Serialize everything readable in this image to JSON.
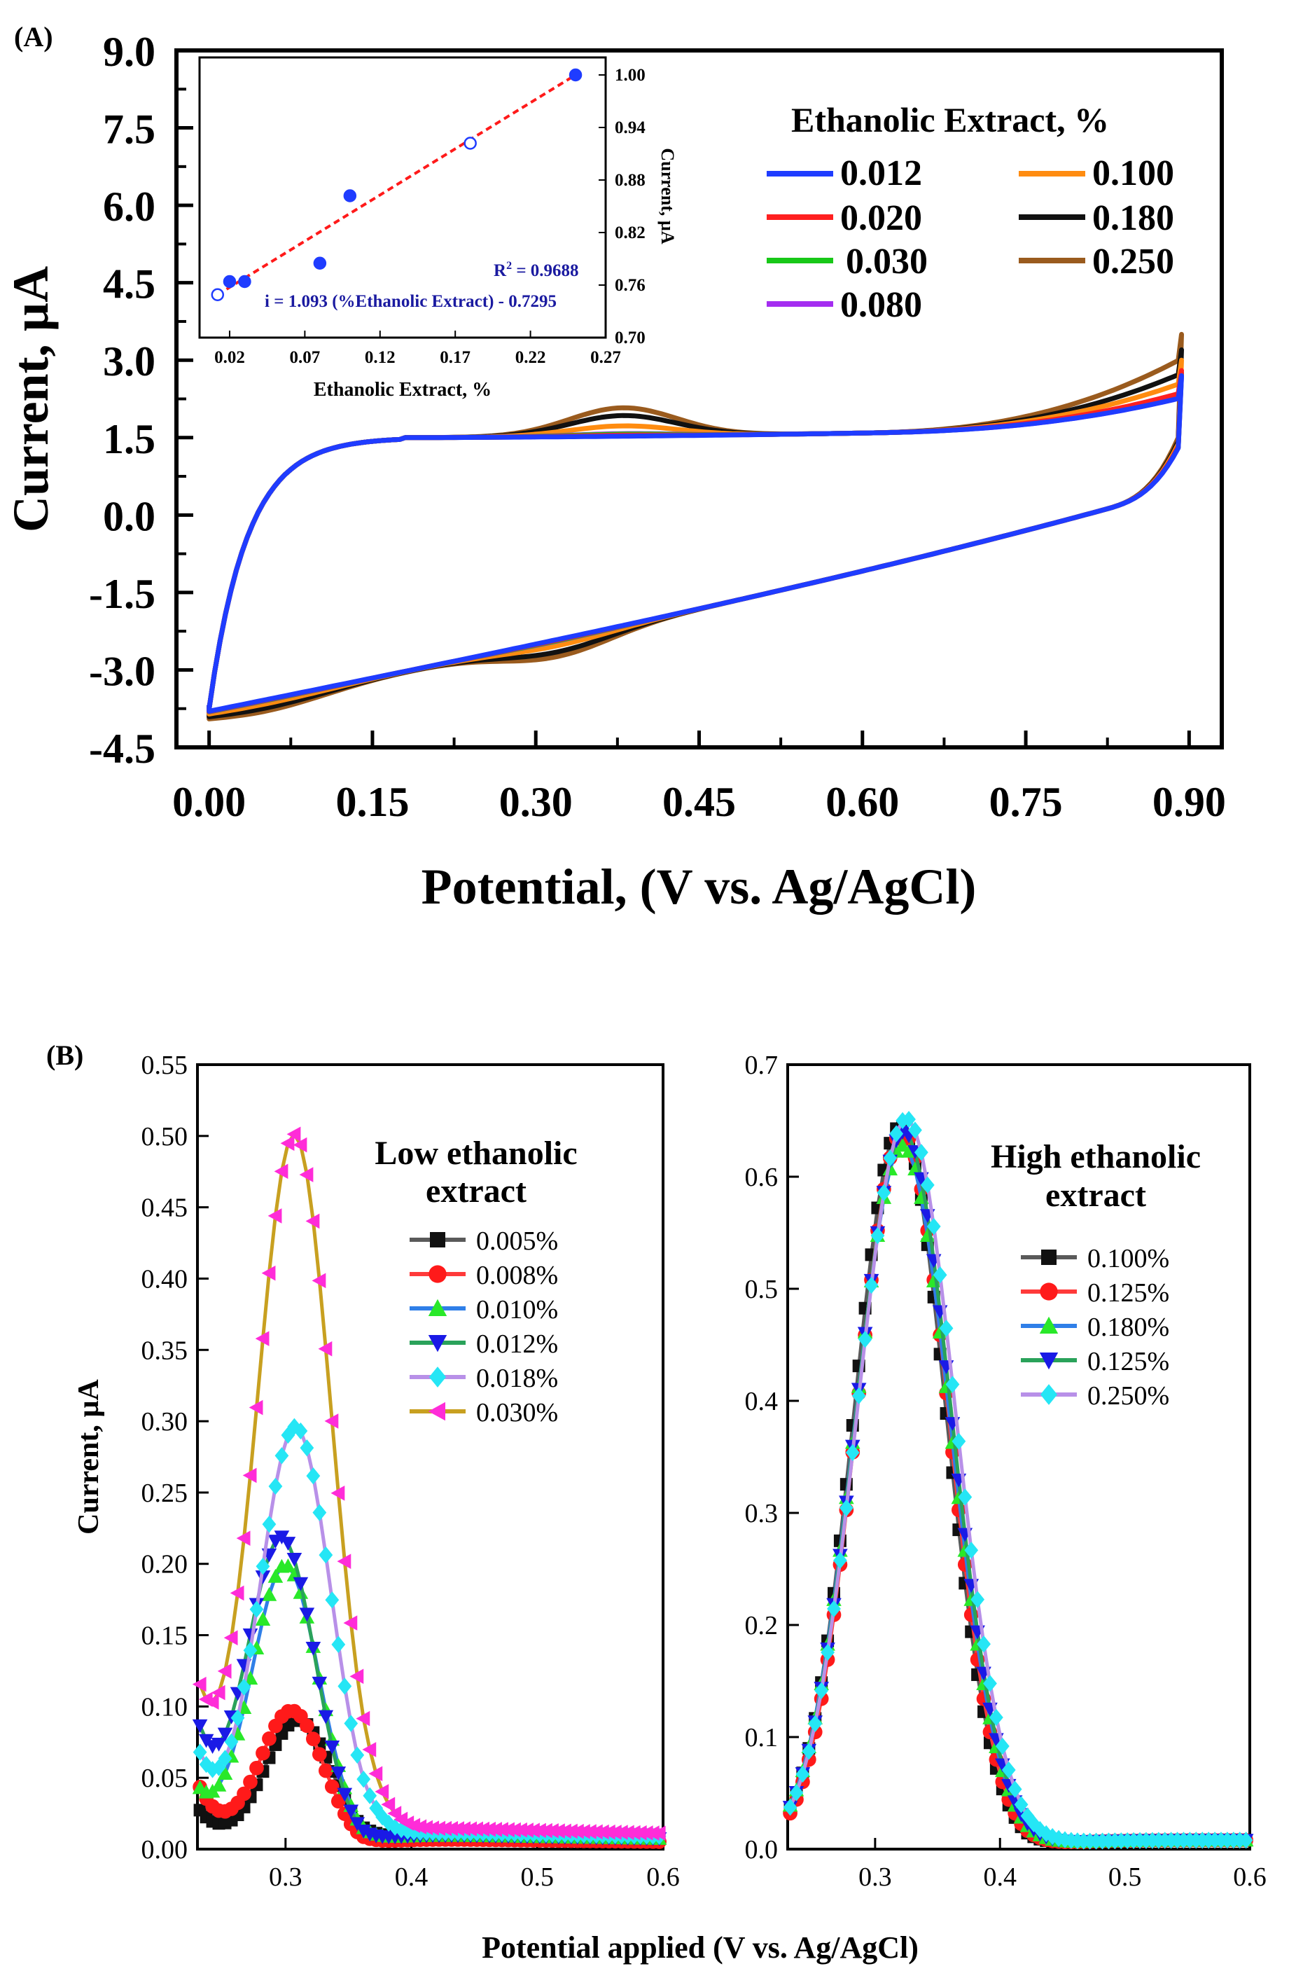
{
  "colors": {
    "blue": "#1f3cff",
    "red": "#ff2020",
    "green": "#18c818",
    "purple": "#a42df0",
    "orange": "#ff8c10",
    "black": "#111111",
    "brown": "#9a5b1e",
    "navy": "#1a1aa0",
    "b_black": "#111111",
    "b_red": "#ff1a1a",
    "b_green": "#29e829",
    "b_blue": "#1a1ae6",
    "b_cyan": "#25e6f5",
    "b_magenta": "#ff2cd8",
    "b_line_gray": "#5a5a5a",
    "b_line_red": "#ff3a3a",
    "b_line_blue": "#2f7fe8",
    "b_line_green": "#2aa25a",
    "b_line_lilac": "#b890e8",
    "b_line_gold": "#c8a020"
  },
  "chart_data": [
    {
      "id": "A",
      "type": "line",
      "panel_label": "(A)",
      "xlabel": "Potential, (V vs. Ag/AgCl)",
      "ylabel": "Current, µA",
      "xlim": [
        -0.03,
        0.93
      ],
      "ylim": [
        -4.5,
        9.0
      ],
      "xticks": [
        "0.00",
        "0.15",
        "0.30",
        "0.45",
        "0.60",
        "0.75",
        "0.90"
      ],
      "yticks": [
        "-4.5",
        "-3.0",
        "-1.5",
        "0.0",
        "1.5",
        "3.0",
        "4.5",
        "6.0",
        "7.5",
        "9.0"
      ],
      "legend_title": "Ethanolic Extract, %",
      "series": [
        {
          "name": "0.012",
          "color": "#1f3cff",
          "peak_height": 0.0,
          "end_current": 2.7
        },
        {
          "name": "0.020",
          "color": "#ff2020",
          "peak_height": 0.02,
          "end_current": 2.8
        },
        {
          "name": "0.030",
          "color": "#18c818",
          "peak_height": 0.04,
          "end_current": 2.75
        },
        {
          "name": "0.080",
          "color": "#a42df0",
          "peak_height": 0.05,
          "end_current": 2.7
        },
        {
          "name": "0.100",
          "color": "#ff8c10",
          "peak_height": 0.2,
          "end_current": 3.0
        },
        {
          "name": "0.180",
          "color": "#111111",
          "peak_height": 0.4,
          "end_current": 3.2
        },
        {
          "name": "0.250",
          "color": "#9a5b1e",
          "peak_height": 0.55,
          "end_current": 3.5
        }
      ]
    },
    {
      "id": "A-inset",
      "type": "scatter",
      "xlabel": "Ethanolic Extract, %",
      "ylabel": "Current, µA",
      "xlim": [
        0.0,
        0.27
      ],
      "ylim": [
        0.7,
        1.02
      ],
      "xticks": [
        "0.02",
        "0.07",
        "0.12",
        "0.17",
        "0.22",
        "0.27"
      ],
      "yticks": [
        "0.70",
        "0.76",
        "0.82",
        "0.88",
        "0.94",
        "1.00"
      ],
      "points": [
        {
          "x": 0.012,
          "y": 0.749,
          "filled": false
        },
        {
          "x": 0.02,
          "y": 0.764,
          "filled": true
        },
        {
          "x": 0.03,
          "y": 0.764,
          "filled": true
        },
        {
          "x": 0.08,
          "y": 0.785,
          "filled": true
        },
        {
          "x": 0.1,
          "y": 0.862,
          "filled": true
        },
        {
          "x": 0.18,
          "y": 0.922,
          "filled": false
        },
        {
          "x": 0.25,
          "y": 1.0,
          "filled": true
        }
      ],
      "fit_line": {
        "x": [
          0.012,
          0.25
        ],
        "y": [
          0.749,
          1.0
        ]
      },
      "r2_prefix": "R",
      "r2_sup": "2",
      "r2_value": " = 0.9688",
      "equation": "i = 1.093 (%Ethanolic Extract) - 0.7295"
    },
    {
      "id": "B-left",
      "type": "line",
      "panel_label": "(B)",
      "ylabel": "Current, µA",
      "xlim": [
        0.23,
        0.6
      ],
      "ylim": [
        0.0,
        0.55
      ],
      "xticks": [
        "0.3",
        "0.4",
        "0.5",
        "0.6"
      ],
      "yticks": [
        "0.00",
        "0.05",
        "0.10",
        "0.15",
        "0.20",
        "0.25",
        "0.30",
        "0.35",
        "0.40",
        "0.45",
        "0.50",
        "0.55"
      ],
      "legend_title": [
        "Low ethanolic",
        "extract"
      ],
      "series": [
        {
          "name": "0.005%",
          "marker": "square",
          "color": "#111111",
          "line": "#5a5a5a",
          "peak_x": 0.31,
          "height": 0.09,
          "width": 0.038,
          "base_left": 0.026,
          "tail": 0.01
        },
        {
          "name": "0.008%",
          "marker": "circle",
          "color": "#ff1a1a",
          "line": "#ff3a3a",
          "peak_x": 0.305,
          "height": 0.096,
          "width": 0.036,
          "base_left": 0.042,
          "tail": 0.007
        },
        {
          "name": "0.010%",
          "marker": "triangle-up",
          "color": "#29e829",
          "line": "#2f7fe8",
          "peak_x": 0.3,
          "height": 0.198,
          "width": 0.038,
          "base_left": 0.035,
          "tail": 0.01
        },
        {
          "name": "0.012%",
          "marker": "triangle-down",
          "color": "#1a1ae6",
          "line": "#2aa25a",
          "peak_x": 0.297,
          "height": 0.216,
          "width": 0.038,
          "base_left": 0.075,
          "tail": 0.01
        },
        {
          "name": "0.018%",
          "marker": "diamond",
          "color": "#25e6f5",
          "line": "#b890e8",
          "peak_x": 0.308,
          "height": 0.295,
          "width": 0.04,
          "base_left": 0.06,
          "tail": 0.012
        },
        {
          "name": "0.030%",
          "marker": "triangle-left",
          "color": "#ff2cd8",
          "line": "#c8a020",
          "peak_x": 0.307,
          "height": 0.499,
          "width": 0.042,
          "base_left": 0.095,
          "tail": 0.015
        }
      ]
    },
    {
      "id": "B-right",
      "type": "line",
      "xlim": [
        0.23,
        0.6
      ],
      "ylim": [
        0.0,
        0.7
      ],
      "xticks": [
        "0.3",
        "0.4",
        "0.5",
        "0.6"
      ],
      "yticks": [
        "0.0",
        "0.1",
        "0.2",
        "0.3",
        "0.4",
        "0.5",
        "0.6",
        "0.7"
      ],
      "legend_title": [
        "High ethanolic",
        "extract"
      ],
      "series": [
        {
          "name": "0.100%",
          "marker": "square",
          "color": "#111111",
          "line": "#5a5a5a",
          "peak_x": 0.32,
          "height": 0.645,
          "width": 0.052
        },
        {
          "name": "0.125%",
          "marker": "circle",
          "color": "#ff1a1a",
          "line": "#ff3a3a",
          "peak_x": 0.322,
          "height": 0.64,
          "width": 0.052
        },
        {
          "name": "0.180%",
          "marker": "triangle-up",
          "color": "#29e829",
          "line": "#2f7fe8",
          "peak_x": 0.322,
          "height": 0.628,
          "width": 0.054
        },
        {
          "name": "0.125%",
          "marker": "triangle-down",
          "color": "#1a1ae6",
          "line": "#2aa25a",
          "peak_x": 0.323,
          "height": 0.64,
          "width": 0.054
        },
        {
          "name": "0.250%",
          "marker": "diamond",
          "color": "#25e6f5",
          "line": "#b890e8",
          "peak_x": 0.325,
          "height": 0.652,
          "width": 0.055
        }
      ]
    }
  ],
  "shared_xlabel_B": "Potential applied (V vs. Ag/AgCl)"
}
